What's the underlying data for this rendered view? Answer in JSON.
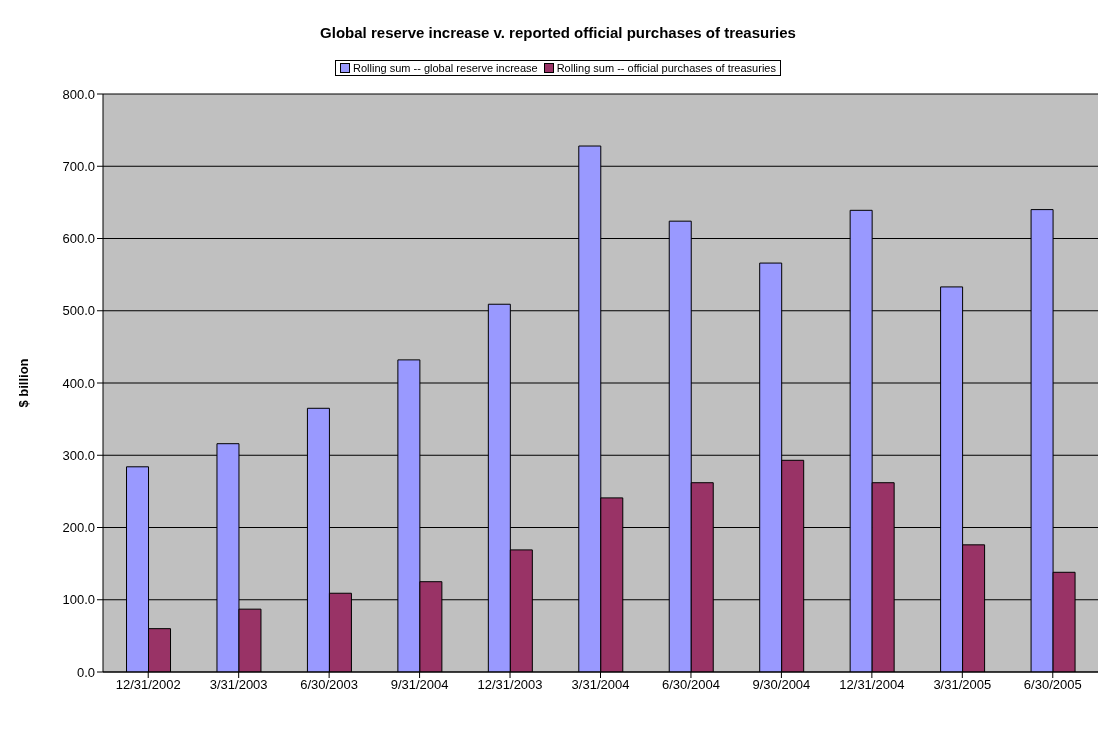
{
  "chart_data": {
    "type": "bar",
    "title": "Global reserve increase v. reported official purchases of treasuries",
    "ylabel": "$ billion",
    "categories": [
      "12/31/2002",
      "3/31/2003",
      "6/30/2003",
      "9/31/2004",
      "12/31/2003",
      "3/31/2004",
      "6/30/2004",
      "9/30/2004",
      "12/31/2004",
      "3/31/2005",
      "6/30/2005"
    ],
    "series": [
      {
        "name": "Rolling sum -- global reserve increase",
        "color": "#9999ff",
        "values": [
          284,
          316,
          365,
          432,
          509,
          728,
          624,
          566,
          639,
          533,
          640
        ]
      },
      {
        "name": "Rolling sum -- official purchases of treasuries",
        "color": "#993366",
        "values": [
          60,
          87,
          109,
          125,
          169,
          241,
          262,
          293,
          262,
          176,
          138
        ]
      }
    ],
    "ylim": [
      0,
      800
    ],
    "yticks": [
      {
        "value": 0,
        "label": "0.0"
      },
      {
        "value": 100,
        "label": "100.0"
      },
      {
        "value": 200,
        "label": "200.0"
      },
      {
        "value": 300,
        "label": "300.0"
      },
      {
        "value": 400,
        "label": "400.0"
      },
      {
        "value": 500,
        "label": "500.0"
      },
      {
        "value": 600,
        "label": "600.0"
      },
      {
        "value": 700,
        "label": "700.0"
      },
      {
        "value": 800,
        "label": "800.0"
      }
    ],
    "grid": "y",
    "legend": "top"
  }
}
